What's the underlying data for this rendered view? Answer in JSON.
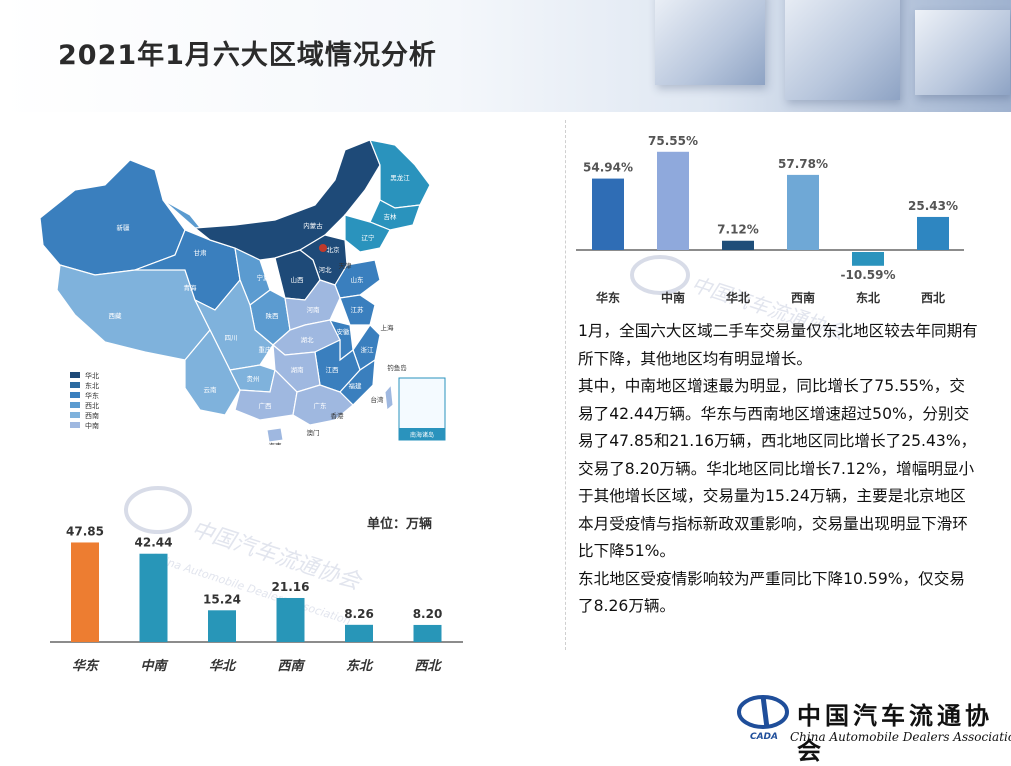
{
  "title": "2021年1月六大区域情况分析",
  "map": {
    "legend": [
      "华北",
      "东北",
      "华东",
      "西北",
      "西南",
      "中南"
    ],
    "legend_colors": [
      "#1e4a78",
      "#2b6aa0",
      "#3a7fbe",
      "#5b9bd0",
      "#7fb2dc",
      "#9fb8e0"
    ],
    "province_labels": [
      "新疆",
      "西藏",
      "青海",
      "甘肃",
      "内蒙古",
      "黑龙江",
      "吉林",
      "辽宁",
      "北京",
      "天津",
      "河北",
      "山西",
      "宁夏",
      "陕西",
      "四川",
      "重庆",
      "云南",
      "贵州",
      "广西",
      "广东",
      "湖南",
      "湖北",
      "河南",
      "山东",
      "江苏",
      "安徽",
      "浙江",
      "江西",
      "福建",
      "上海",
      "台湾",
      "香港",
      "澳门",
      "海南",
      "钓鱼岛",
      "南海诸岛"
    ]
  },
  "unit_label": "单位：万辆",
  "watermark": {
    "cn": "中国汽车流通协会",
    "en": "China Automobile Dealers Association"
  },
  "chart_data": [
    {
      "type": "bar",
      "title": "",
      "categories": [
        "华东",
        "中南",
        "华北",
        "西南",
        "东北",
        "西北"
      ],
      "values": [
        54.94,
        75.55,
        7.12,
        57.78,
        -10.59,
        25.43
      ],
      "value_labels": [
        "54.94%",
        "75.55%",
        "7.12%",
        "57.78%",
        "-10.59%",
        "25.43%"
      ],
      "colors": [
        "#2f6db5",
        "#8fa9dc",
        "#1f4e79",
        "#6fa8d6",
        "#2a93bd",
        "#2e86c1"
      ],
      "xlabel": "",
      "ylabel": ""
    },
    {
      "type": "bar",
      "title": "",
      "categories": [
        "华东",
        "中南",
        "华北",
        "西南",
        "东北",
        "西北"
      ],
      "values": [
        47.85,
        42.44,
        15.24,
        21.16,
        8.26,
        8.2
      ],
      "value_labels": [
        "47.85",
        "42.44",
        "15.24",
        "21.16",
        "8.26",
        "8.20"
      ],
      "colors": [
        "#ed7d31",
        "#2896b8",
        "#2896b8",
        "#2896b8",
        "#2896b8",
        "#2896b8"
      ],
      "xlabel": "",
      "ylabel": "单位：万辆"
    }
  ],
  "analysis": [
    "1月，全国六大区域二手车交易量仅东北地区较去年同期有所下降，其他地区均有明显增长。",
    "其中，中南地区增速最为明显，同比增长了75.55%，交易了42.44万辆。华东与西南地区增速超过50%，分别交易了47.85和21.16万辆，西北地区同比增长了25.43%，交易了8.20万辆。华北地区同比增长7.12%，增幅明显小于其他增长区域，交易量为15.24万辆，主要是北京地区本月受疫情与指标新政双重影响，交易量出现明显下滑环比下降51%。",
    "东北地区受疫情影响较为严重同比下降10.59%，仅交易了8.26万辆。"
  ],
  "logo": {
    "cn": "中国汽车流通协会",
    "en": "China Automobile Dealers Association",
    "mark": "CADA"
  }
}
